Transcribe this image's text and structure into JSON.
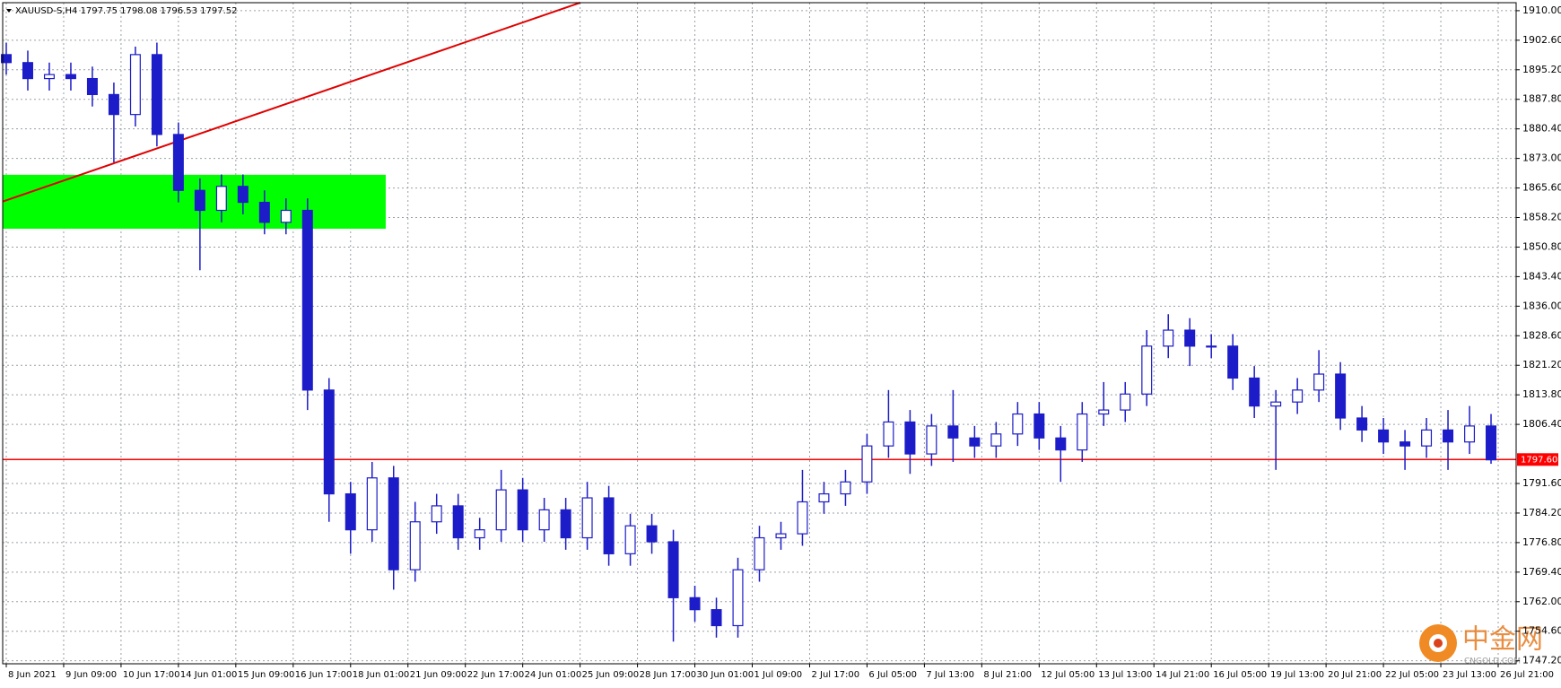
{
  "chart_data": {
    "type": "candlestick",
    "title": "XAUUSD-S,H4  1797.75 1798.08 1796.53 1797.52",
    "color": "#1c1cc8",
    "x": [
      0,
      3,
      6,
      9,
      12,
      15,
      18,
      21,
      24,
      27,
      30,
      33,
      36,
      39,
      42,
      45,
      48,
      51,
      54,
      57,
      60,
      63,
      66,
      69,
      72,
      75,
      78,
      81,
      84,
      87,
      90,
      93,
      96,
      99,
      102,
      105,
      108,
      111,
      114,
      117,
      120,
      123,
      126,
      129,
      132,
      135,
      138,
      141,
      144,
      147,
      150,
      153,
      156,
      159,
      162,
      165,
      168,
      171,
      174,
      177,
      180,
      183,
      186,
      189,
      192,
      195,
      198,
      201,
      204,
      207
    ],
    "open": [
      1899,
      1897,
      1893,
      1894,
      1893,
      1889,
      1884,
      1899,
      1879,
      1865,
      1860,
      1866,
      1862,
      1857,
      1860,
      1815,
      1789,
      1780,
      1793,
      1770,
      1782,
      1786,
      1778,
      1780,
      1790,
      1780,
      1785,
      1778,
      1788,
      1774,
      1781,
      1777,
      1763,
      1760,
      1756,
      1770,
      1778,
      1779,
      1787,
      1789,
      1792,
      1801,
      1807,
      1799,
      1806,
      1803,
      1801,
      1804,
      1809,
      1803,
      1800,
      1809,
      1810,
      1814,
      1826,
      1830,
      1826,
      1826,
      1818,
      1811,
      1812,
      1815,
      1819,
      1808,
      1805,
      1802,
      1801,
      1805,
      1802,
      1806
    ],
    "high": [
      1902,
      1900,
      1897,
      1897,
      1896,
      1892,
      1901,
      1902,
      1882,
      1868,
      1869,
      1869,
      1865,
      1863,
      1863,
      1818,
      1792,
      1797,
      1796,
      1787,
      1789,
      1789,
      1783,
      1795,
      1793,
      1788,
      1788,
      1792,
      1791,
      1784,
      1784,
      1780,
      1766,
      1763,
      1773,
      1781,
      1782,
      1795,
      1792,
      1795,
      1804,
      1815,
      1810,
      1809,
      1815,
      1806,
      1807,
      1812,
      1812,
      1806,
      1812,
      1817,
      1817,
      1830,
      1834,
      1833,
      1829,
      1829,
      1821,
      1815,
      1818,
      1825,
      1822,
      1811,
      1808,
      1805,
      1808,
      1810,
      1811,
      1809
    ],
    "low": [
      1894,
      1890,
      1890,
      1890,
      1886,
      1872,
      1881,
      1876,
      1862,
      1845,
      1857,
      1859,
      1854,
      1854,
      1810,
      1782,
      1774,
      1777,
      1765,
      1767,
      1779,
      1775,
      1775,
      1777,
      1777,
      1777,
      1775,
      1775,
      1771,
      1771,
      1774,
      1752,
      1757,
      1753,
      1753,
      1767,
      1775,
      1776,
      1784,
      1786,
      1789,
      1798,
      1794,
      1796,
      1797,
      1798,
      1798,
      1801,
      1800,
      1792,
      1797,
      1806,
      1807,
      1811,
      1823,
      1821,
      1823,
      1815,
      1808,
      1795,
      1809,
      1812,
      1805,
      1802,
      1799,
      1795,
      1798,
      1795,
      1799,
      1796.53
    ],
    "close": [
      1897,
      1893,
      1894,
      1893,
      1889,
      1884,
      1899,
      1879,
      1865,
      1860,
      1866,
      1862,
      1857,
      1860,
      1815,
      1789,
      1780,
      1793,
      1770,
      1782,
      1786,
      1778,
      1780,
      1790,
      1780,
      1785,
      1778,
      1788,
      1774,
      1781,
      1777,
      1763,
      1760,
      1756,
      1770,
      1778,
      1779,
      1787,
      1789,
      1792,
      1801,
      1807,
      1799,
      1806,
      1803,
      1801,
      1804,
      1809,
      1803,
      1800,
      1809,
      1810,
      1814,
      1826,
      1830,
      1826,
      1826,
      1818,
      1811,
      1812,
      1815,
      1819,
      1808,
      1805,
      1802,
      1801,
      1805,
      1802,
      1806,
      1797.52
    ],
    "xlim": [
      -0.5,
      210.5
    ],
    "xticks": [
      {
        "value": 0,
        "label": "8 Jun 2021"
      },
      {
        "value": 8,
        "label": "9 Jun 09:00"
      },
      {
        "value": 16,
        "label": "10 Jun 17:00"
      },
      {
        "value": 24,
        "label": "14 Jun 01:00"
      },
      {
        "value": 32,
        "label": "15 Jun 09:00"
      },
      {
        "value": 40,
        "label": "16 Jun 17:00"
      },
      {
        "value": 48,
        "label": "18 Jun 01:00"
      },
      {
        "value": 56,
        "label": "21 Jun 09:00"
      },
      {
        "value": 64,
        "label": "22 Jun 17:00"
      },
      {
        "value": 72,
        "label": "24 Jun 01:00"
      },
      {
        "value": 80,
        "label": "25 Jun 09:00"
      },
      {
        "value": 88,
        "label": "28 Jun 17:00"
      },
      {
        "value": 96,
        "label": "30 Jun 01:00"
      },
      {
        "value": 104,
        "label": "1 Jul 09:00"
      },
      {
        "value": 112,
        "label": "2 Jul 17:00"
      },
      {
        "value": 120,
        "label": "6 Jul 05:00"
      },
      {
        "value": 128,
        "label": "7 Jul 13:00"
      },
      {
        "value": 136,
        "label": "8 Jul 21:00"
      },
      {
        "value": 144,
        "label": "12 Jul 05:00"
      },
      {
        "value": 152,
        "label": "13 Jul 13:00"
      },
      {
        "value": 160,
        "label": "14 Jul 21:00"
      },
      {
        "value": 168,
        "label": "16 Jul 05:00"
      },
      {
        "value": 176,
        "label": "19 Jul 13:00"
      },
      {
        "value": 184,
        "label": "20 Jul 21:00"
      },
      {
        "value": 192,
        "label": "22 Jul 05:00"
      },
      {
        "value": 200,
        "label": "23 Jul 13:00"
      },
      {
        "value": 208,
        "label": "26 Jul 21:00"
      }
    ],
    "ylim": [
      1746.45,
      1912
    ],
    "yticks": [
      {
        "value": 1910,
        "label": "1910.00"
      },
      {
        "value": 1902.6,
        "label": "1902.60"
      },
      {
        "value": 1895.2,
        "label": "1895.20"
      },
      {
        "value": 1887.8,
        "label": "1887.80"
      },
      {
        "value": 1880.4,
        "label": "1880.40"
      },
      {
        "value": 1873,
        "label": "1873.00"
      },
      {
        "value": 1865.6,
        "label": "1865.60"
      },
      {
        "value": 1858.2,
        "label": "1858.20"
      },
      {
        "value": 1850.8,
        "label": "1850.80"
      },
      {
        "value": 1843.4,
        "label": "1843.40"
      },
      {
        "value": 1836,
        "label": "1836.00"
      },
      {
        "value": 1828.6,
        "label": "1828.60"
      },
      {
        "value": 1821.2,
        "label": "1821.20"
      },
      {
        "value": 1813.8,
        "label": "1813.80"
      },
      {
        "value": 1806.4,
        "label": "1806.40"
      },
      {
        "value": 1791.6,
        "label": "1791.60"
      },
      {
        "value": 1784.2,
        "label": "1784.20"
      },
      {
        "value": 1776.8,
        "label": "1776.80"
      },
      {
        "value": 1769.4,
        "label": "1769.40"
      },
      {
        "value": 1762,
        "label": "1762.00"
      },
      {
        "value": 1754.6,
        "label": "1754.60"
      },
      {
        "value": 1747.2,
        "label": "1747.20"
      }
    ],
    "grid": true,
    "price_line": {
      "value": 1797.6,
      "label": "1797.60",
      "color": "#ff0000"
    },
    "zone": {
      "x": [
        -0.5,
        52.9
      ],
      "y": [
        1855.4,
        1868.9
      ],
      "color": "#00ff00"
    },
    "trendline": {
      "x": [
        -0.5,
        80
      ],
      "y": [
        1862.2,
        1912
      ],
      "color": "#e00000"
    },
    "watermark": {
      "text": "中金网",
      "subtext": "CNGOLD.COM"
    }
  }
}
